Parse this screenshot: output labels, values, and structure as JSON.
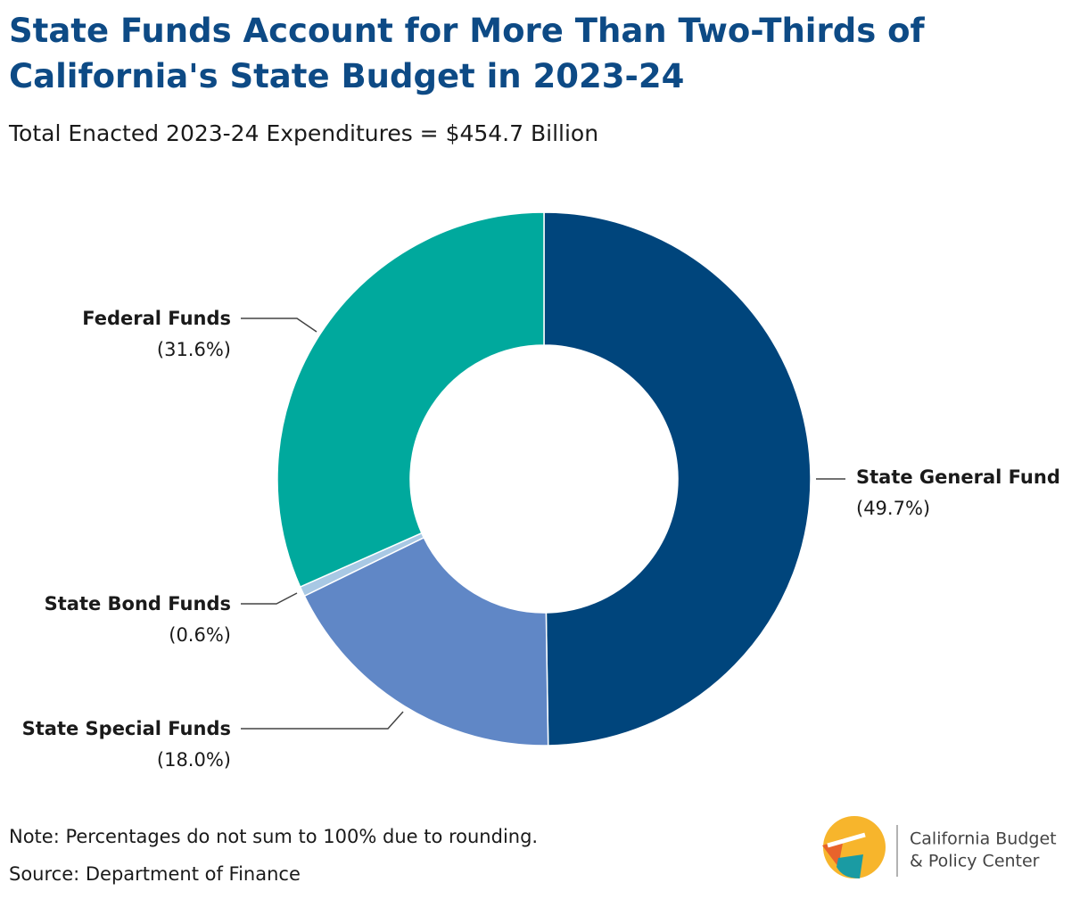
{
  "chart_data": {
    "type": "donut",
    "title": "State Funds Account for More Than Two-Thirds of California's State Budget in 2023-24",
    "subtitle": "Total Enacted 2023-24 Expenditures = $454.7 Billion",
    "categories": [
      "State General Fund",
      "State Special Funds",
      "State Bond Funds",
      "Federal Funds"
    ],
    "values": [
      49.7,
      18.0,
      0.6,
      31.6
    ],
    "value_labels": [
      "(49.7%)",
      "(18.0%)",
      "(0.6%)",
      "(31.6%)"
    ],
    "colors": [
      "#00457c",
      "#6087c6",
      "#a8c8e4",
      "#00a99d"
    ],
    "note": "Note: Percentages do not sum to 100% due to rounding.",
    "source": "Source: Department of Finance"
  },
  "logo": {
    "lines": [
      "California Budget",
      "& Policy Center"
    ]
  }
}
